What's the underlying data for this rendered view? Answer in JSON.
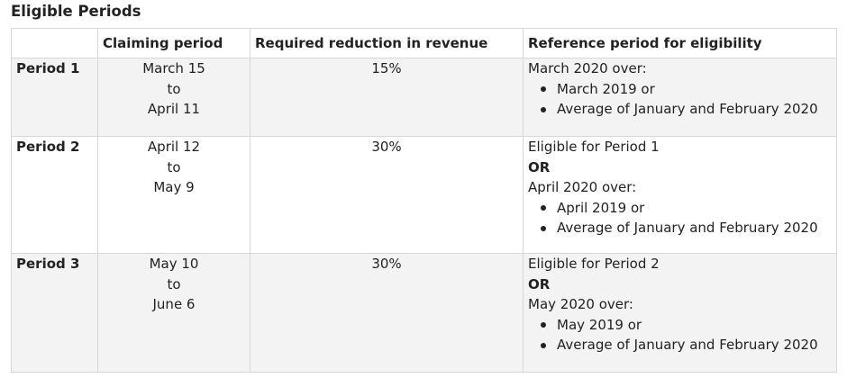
{
  "title": "Eligible Periods",
  "table": {
    "headers": [
      "",
      "Claiming period",
      "Required reduction in revenue",
      "Reference period for eligibility"
    ],
    "rows": [
      {
        "label": "Period 1",
        "claim": [
          "March 15",
          "to",
          "April 11"
        ],
        "reduction": "15%",
        "ref": {
          "lead": "",
          "or": "",
          "over": "March 2020 over:",
          "bullets": [
            "March 2019 or",
            "Average of January and February 2020"
          ]
        }
      },
      {
        "label": "Period 2",
        "claim": [
          "April 12",
          "to",
          "May 9"
        ],
        "reduction": "30%",
        "ref": {
          "lead": "Eligible for Period 1",
          "or": "OR",
          "over": "April 2020 over:",
          "bullets": [
            "April 2019 or",
            "Average of January and February 2020"
          ]
        }
      },
      {
        "label": "Period 3",
        "claim": [
          "May 10",
          "to",
          "June 6"
        ],
        "reduction": "30%",
        "ref": {
          "lead": "Eligible for Period 2",
          "or": "OR",
          "over": "May 2020 over:",
          "bullets": [
            "May 2019 or",
            "Average of January and February 2020"
          ]
        }
      }
    ]
  }
}
